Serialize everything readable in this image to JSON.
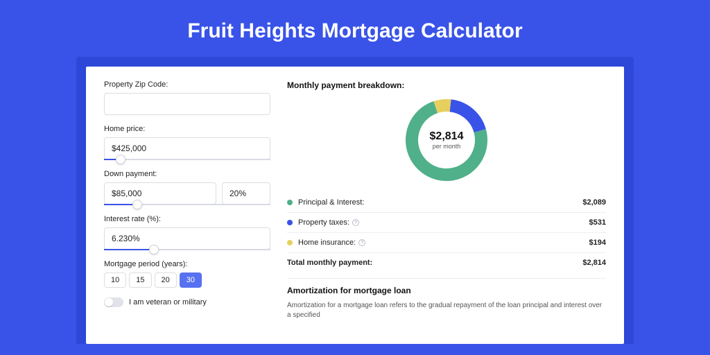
{
  "page": {
    "title": "Fruit Heights Mortgage Calculator",
    "background_color": "#3953e8",
    "outer_card_color": "#2d47d8",
    "card_color": "#ffffff"
  },
  "form": {
    "zip": {
      "label": "Property Zip Code:",
      "value": ""
    },
    "home_price": {
      "label": "Home price:",
      "value": "$425,000",
      "slider_pct": 10
    },
    "down_payment": {
      "label": "Down payment:",
      "value": "$85,000",
      "pct": "20%",
      "slider_pct": 20
    },
    "interest": {
      "label": "Interest rate (%):",
      "value": "6.230%",
      "slider_pct": 30
    },
    "period": {
      "label": "Mortgage period (years):",
      "options": [
        "10",
        "15",
        "20",
        "30"
      ],
      "selected": "30"
    },
    "veteran": {
      "label": "I am veteran or military",
      "on": false
    }
  },
  "breakdown": {
    "title": "Monthly payment breakdown:",
    "center_amount": "$2,814",
    "center_sub": "per month",
    "donut": {
      "slices": [
        {
          "label": "Principal & Interest:",
          "value": "$2,089",
          "color": "#4fb08a",
          "pct": 74.2
        },
        {
          "label": "Property taxes:",
          "value": "$531",
          "color": "#3953e8",
          "pct": 18.9,
          "help": true
        },
        {
          "label": "Home insurance:",
          "value": "$194",
          "color": "#e7cf5f",
          "pct": 6.9,
          "help": true
        }
      ],
      "ring_width": 18,
      "radius": 50
    },
    "total": {
      "label": "Total monthly payment:",
      "value": "$2,814"
    }
  },
  "amortization": {
    "title": "Amortization for mortgage loan",
    "text": "Amortization for a mortgage loan refers to the gradual repayment of the loan principal and interest over a specified"
  }
}
